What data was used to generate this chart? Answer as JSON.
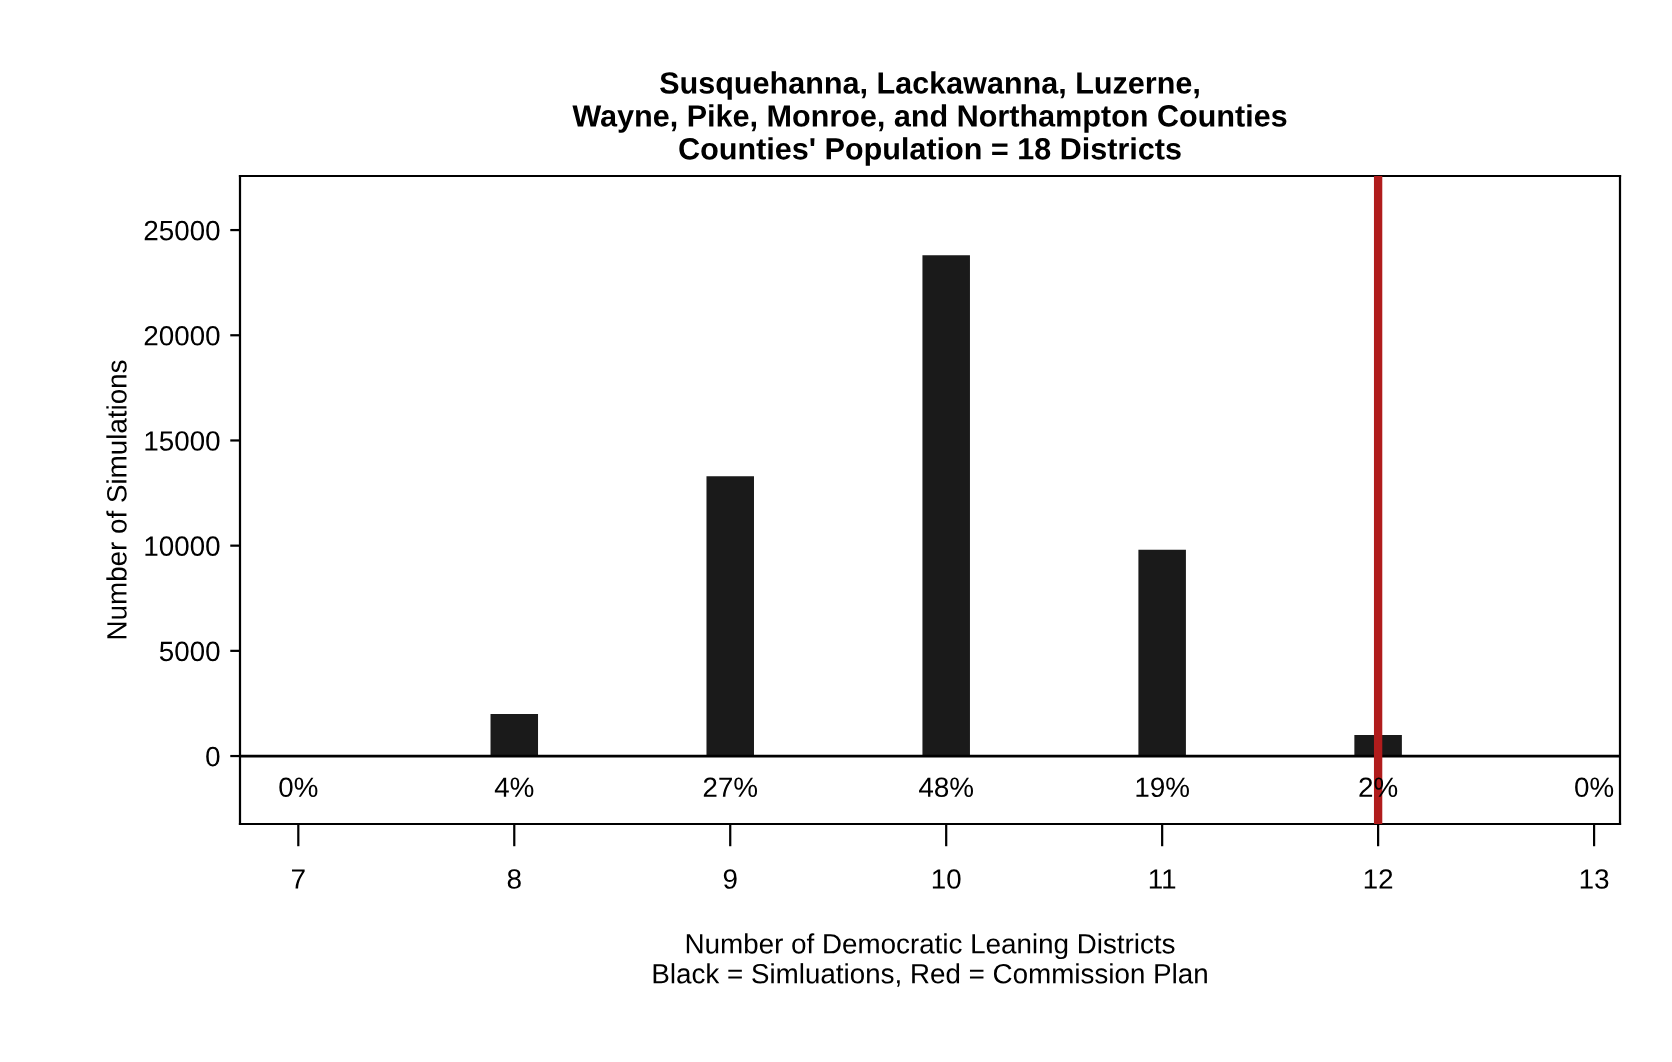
{
  "chart_data": {
    "type": "bar",
    "title": "Susquehanna, Lackawanna, Luzerne,\nWayne, Pike, Monroe, and Northampton Counties\nCounties' Population = 18 Districts",
    "xlabel": "Number of Democratic Leaning Districts\nBlack = Simluations, Red = Commission Plan",
    "ylabel": "Number of Simulations",
    "x": [
      7,
      8,
      9,
      10,
      11,
      12,
      13
    ],
    "values": [
      0,
      2000,
      13300,
      23800,
      9800,
      1000,
      0
    ],
    "color": "#1a1a1a",
    "annotations": [
      "0%",
      "4%",
      "27%",
      "48%",
      "19%",
      "2%",
      "0%"
    ],
    "xlim": [
      6.73,
      13.12
    ],
    "xticks": [
      7,
      8,
      9,
      10,
      11,
      12,
      13
    ],
    "ylim": [
      -3230,
      27570
    ],
    "yticks": [
      0,
      5000,
      10000,
      15000,
      20000,
      25000
    ],
    "ref_lines": [
      {
        "axis": "y",
        "value": 0,
        "color": "#000000"
      },
      {
        "axis": "x",
        "value": 12,
        "color": "#b01c1c"
      }
    ],
    "grid": false,
    "legend": false
  }
}
